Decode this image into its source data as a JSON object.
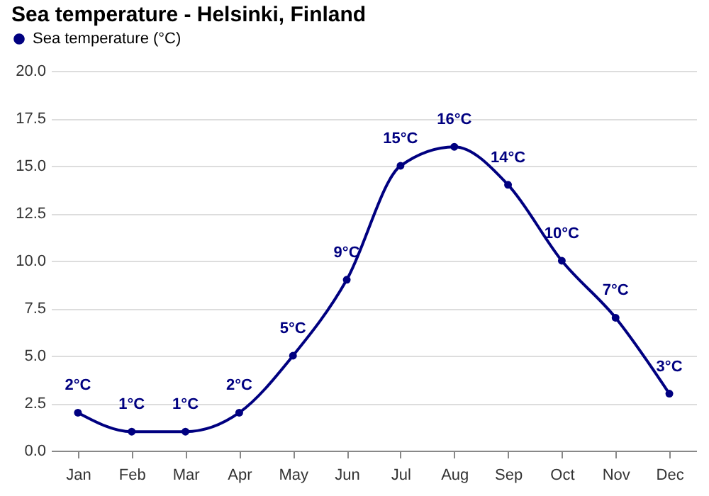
{
  "chart_data": {
    "type": "line",
    "title": "Sea temperature - Helsinki, Finland",
    "categories": [
      "Jan",
      "Feb",
      "Mar",
      "Apr",
      "May",
      "Jun",
      "Jul",
      "Aug",
      "Sep",
      "Oct",
      "Nov",
      "Dec"
    ],
    "series": [
      {
        "name": "Sea temperature (°C)",
        "color": "#000080",
        "values": [
          2,
          1,
          1,
          2,
          5,
          9,
          15,
          16,
          14,
          10,
          7,
          3
        ],
        "value_labels": [
          "2°C",
          "1°C",
          "1°C",
          "2°C",
          "5°C",
          "9°C",
          "15°C",
          "16°C",
          "14°C",
          "10°C",
          "7°C",
          "3°C"
        ]
      }
    ],
    "ylim": [
      0,
      20
    ],
    "yticks": [
      {
        "value": 0,
        "label": "0.0"
      },
      {
        "value": 2.5,
        "label": "2.5"
      },
      {
        "value": 5,
        "label": "5.0"
      },
      {
        "value": 7.5,
        "label": "7.5"
      },
      {
        "value": 10,
        "label": "10.0"
      },
      {
        "value": 12.5,
        "label": "12.5"
      },
      {
        "value": 15,
        "label": "15.0"
      },
      {
        "value": 17.5,
        "label": "17.5"
      },
      {
        "value": 20,
        "label": "20.0"
      }
    ],
    "grid": "y",
    "legend": "top left",
    "marker": "circle",
    "line_style": "solid"
  }
}
